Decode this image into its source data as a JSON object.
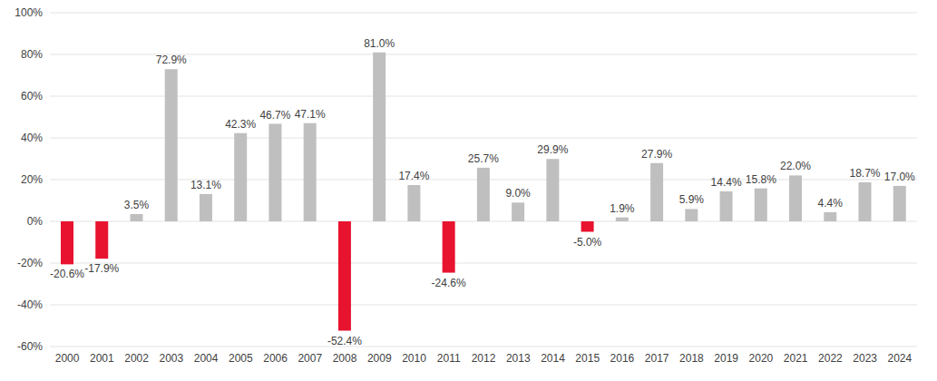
{
  "chart_data": {
    "type": "bar",
    "categories": [
      "2000",
      "2001",
      "2002",
      "2003",
      "2004",
      "2005",
      "2006",
      "2007",
      "2008",
      "2009",
      "2010",
      "2011",
      "2012",
      "2013",
      "2014",
      "2015",
      "2016",
      "2017",
      "2018",
      "2019",
      "2020",
      "2021",
      "2022",
      "2023",
      "2024"
    ],
    "values": [
      -20.6,
      -17.9,
      3.5,
      72.9,
      13.1,
      42.3,
      46.7,
      47.1,
      -52.4,
      81.0,
      17.4,
      -24.6,
      25.7,
      9.0,
      29.9,
      -5.0,
      1.9,
      27.9,
      5.9,
      14.4,
      15.8,
      22.0,
      4.4,
      18.7,
      17.0
    ],
    "value_labels": [
      "-20.6%",
      "-17.9%",
      "3.5%",
      "72.9%",
      "13.1%",
      "42.3%",
      "46.7%",
      "47.1%",
      "-52.4%",
      "81.0%",
      "17.4%",
      "-24.6%",
      "25.7%",
      "9.0%",
      "29.9%",
      "-5.0%",
      "1.9%",
      "27.9%",
      "5.9%",
      "14.4%",
      "15.8%",
      "22.0%",
      "4.4%",
      "18.7%",
      "17.0%"
    ],
    "colors": [
      "#e8132f",
      "#e8132f",
      "#bfbfbf",
      "#bfbfbf",
      "#bfbfbf",
      "#bfbfbf",
      "#bfbfbf",
      "#bfbfbf",
      "#e8132f",
      "#bfbfbf",
      "#bfbfbf",
      "#e8132f",
      "#bfbfbf",
      "#bfbfbf",
      "#bfbfbf",
      "#e8132f",
      "#bfbfbf",
      "#bfbfbf",
      "#bfbfbf",
      "#bfbfbf",
      "#bfbfbf",
      "#bfbfbf",
      "#bfbfbf",
      "#bfbfbf",
      "#bfbfbf"
    ],
    "ylim": [
      -60,
      100
    ],
    "yticks": [
      {
        "value": -60,
        "label": "-60%"
      },
      {
        "value": -40,
        "label": "-40%"
      },
      {
        "value": -20,
        "label": "-20%"
      },
      {
        "value": 0,
        "label": "0%"
      },
      {
        "value": 20,
        "label": "20%"
      },
      {
        "value": 40,
        "label": "40%"
      },
      {
        "value": 60,
        "label": "60%"
      },
      {
        "value": 80,
        "label": "80%"
      },
      {
        "value": 100,
        "label": "100%"
      }
    ],
    "grid": true,
    "data_labels": true
  }
}
